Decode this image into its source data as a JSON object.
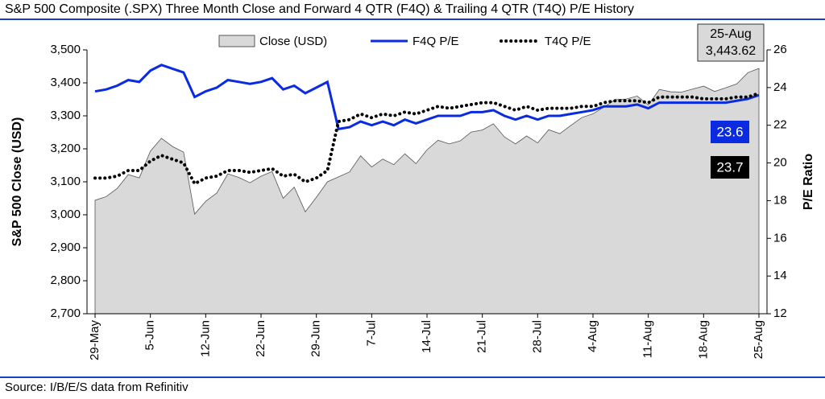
{
  "chart_data": {
    "type": "area_line",
    "title": "S&P 500 Composite (.SPX) Three Month Close and Forward 4 QTR (F4Q) & Trailing 4 QTR (T4Q) P/E History",
    "source": "Source: I/B/E/S data from Refinitiv",
    "ylabel": "S&P 500 Close (USD)",
    "y2label": "P/E Ratio",
    "categories": [
      "29-May",
      null,
      null,
      null,
      null,
      "5-Jun",
      null,
      null,
      null,
      null,
      "12-Jun",
      null,
      null,
      null,
      null,
      "22-Jun",
      null,
      null,
      null,
      null,
      "29-Jun",
      null,
      null,
      null,
      null,
      "7-Jul",
      null,
      null,
      null,
      null,
      "14-Jul",
      null,
      null,
      null,
      null,
      "21-Jul",
      null,
      null,
      null,
      null,
      "28-Jul",
      null,
      null,
      null,
      null,
      "4-Aug",
      null,
      null,
      null,
      null,
      "11-Aug",
      null,
      null,
      null,
      null,
      "18-Aug",
      null,
      null,
      null,
      null,
      "25-Aug"
    ],
    "series": [
      {
        "name": "Close (USD)",
        "type": "area",
        "color": "#d9d9d9",
        "values": [
          3044,
          3055,
          3080,
          3122,
          3112,
          3193,
          3232,
          3207,
          3190,
          3002,
          3041,
          3066,
          3124,
          3113,
          3097,
          3117,
          3131,
          3050,
          3084,
          3009,
          3053,
          3100,
          3115,
          3130,
          3179,
          3145,
          3169,
          3152,
          3185,
          3155,
          3197,
          3226,
          3215,
          3224,
          3251,
          3257,
          3276,
          3236,
          3215,
          3239,
          3218,
          3258,
          3246,
          3271,
          3295,
          3306,
          3327,
          3349,
          3351,
          3360,
          3333,
          3380,
          3373,
          3372,
          3381,
          3390,
          3374,
          3385,
          3397,
          3431,
          3443.62
        ]
      },
      {
        "name": "F4Q P/E",
        "type": "line",
        "axis": "y2",
        "color": "#0a2be0",
        "values": [
          23.8,
          23.9,
          24.1,
          24.4,
          24.3,
          24.9,
          25.2,
          25.0,
          24.8,
          23.5,
          23.8,
          24.0,
          24.4,
          24.3,
          24.2,
          24.3,
          24.5,
          23.9,
          24.1,
          23.7,
          24.0,
          24.3,
          21.8,
          21.9,
          22.2,
          22.0,
          22.2,
          22.0,
          22.3,
          22.1,
          22.3,
          22.5,
          22.5,
          22.5,
          22.7,
          22.7,
          22.8,
          22.5,
          22.3,
          22.5,
          22.3,
          22.5,
          22.5,
          22.6,
          22.7,
          22.8,
          23.0,
          23.0,
          23.0,
          23.1,
          22.9,
          23.2,
          23.2,
          23.2,
          23.2,
          23.2,
          23.2,
          23.2,
          23.3,
          23.4,
          23.6
        ]
      },
      {
        "name": "T4Q P/E",
        "type": "line",
        "axis": "y2",
        "dashed": true,
        "color": "#000000",
        "values": [
          19.2,
          19.2,
          19.3,
          19.6,
          19.6,
          20.1,
          20.4,
          20.2,
          20.0,
          18.9,
          19.2,
          19.3,
          19.6,
          19.6,
          19.5,
          19.6,
          19.7,
          19.3,
          19.4,
          19.0,
          19.2,
          19.6,
          22.2,
          22.3,
          22.6,
          22.4,
          22.6,
          22.5,
          22.7,
          22.6,
          22.8,
          23.0,
          22.9,
          23.0,
          23.1,
          23.2,
          23.2,
          23.0,
          22.8,
          23.0,
          22.8,
          22.9,
          22.9,
          22.9,
          23.0,
          23.0,
          23.2,
          23.3,
          23.3,
          23.3,
          23.2,
          23.5,
          23.5,
          23.5,
          23.5,
          23.4,
          23.4,
          23.4,
          23.5,
          23.5,
          23.7
        ]
      }
    ],
    "ylim": [
      2700,
      3500
    ],
    "yticks": [
      {
        "value": 2700,
        "label": "2,700"
      },
      {
        "value": 2800,
        "label": "2,800"
      },
      {
        "value": 2900,
        "label": "2,900"
      },
      {
        "value": 3000,
        "label": "3,000"
      },
      {
        "value": 3100,
        "label": "3,100"
      },
      {
        "value": 3200,
        "label": "3,200"
      },
      {
        "value": 3300,
        "label": "3,300"
      },
      {
        "value": 3400,
        "label": "3,400"
      },
      {
        "value": 3500,
        "label": "3,500"
      }
    ],
    "y2lim": [
      12,
      26
    ],
    "y2ticks": [
      12,
      14,
      16,
      18,
      20,
      22,
      24,
      26
    ],
    "annotations": {
      "date": "25-Aug",
      "close": "3,443.62",
      "f4q": "23.6",
      "t4q": "23.7"
    }
  }
}
